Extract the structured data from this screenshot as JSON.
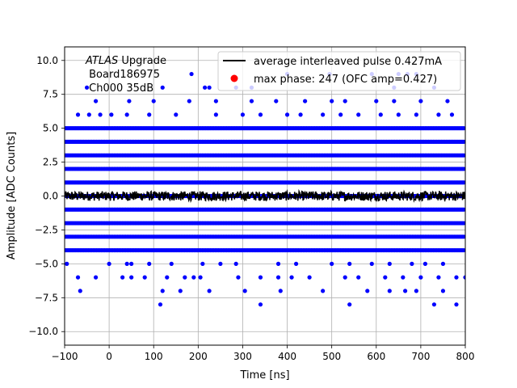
{
  "chart_data": {
    "type": "scatter",
    "title": "",
    "xlabel": "Time [ns]",
    "ylabel": "Amplitude [ADC Counts]",
    "xlim": [
      -100,
      800
    ],
    "ylim": [
      -11,
      11
    ],
    "grid": true,
    "xticks": [
      -100,
      0,
      100,
      200,
      300,
      400,
      500,
      600,
      700,
      800
    ],
    "yticks": [
      -10.0,
      -7.5,
      -5.0,
      -2.5,
      0.0,
      2.5,
      5.0,
      7.5,
      10.0
    ],
    "xtick_labels": [
      "−100",
      "0",
      "100",
      "200",
      "300",
      "400",
      "500",
      "600",
      "700",
      "800"
    ],
    "ytick_labels": [
      "−10.0",
      "−7.5",
      "−5.0",
      "−2.5",
      "0.0",
      "2.5",
      "5.0",
      "7.5",
      "10.0"
    ],
    "annotation": {
      "line1_italic": "ATLAS",
      "line1_rest": " Upgrade",
      "line2": " Board186975",
      "line3": " Ch000 35dB"
    },
    "legend": {
      "placement": "top-right",
      "entries": [
        {
          "label": "average interleaved pulse 0.427mA",
          "marker": "line",
          "color": "#000000"
        },
        {
          "label": "max phase: 247 (OFC amp=0.427)",
          "marker": "dot",
          "color": "#ff0000"
        }
      ]
    },
    "series": [
      {
        "kind": "samples",
        "color": "#0000ff",
        "dense_levels": [
          -4,
          -3,
          -2,
          -1,
          0,
          1,
          2,
          3,
          4,
          5
        ],
        "dense_spacing_ns": 3.6,
        "sparse_points": [
          [
            -70,
            6
          ],
          [
            -45,
            6
          ],
          [
            -20,
            6
          ],
          [
            5,
            6
          ],
          [
            40,
            6
          ],
          [
            90,
            6
          ],
          [
            150,
            6
          ],
          [
            240,
            6
          ],
          [
            300,
            6
          ],
          [
            340,
            6
          ],
          [
            400,
            6
          ],
          [
            430,
            6
          ],
          [
            480,
            6
          ],
          [
            520,
            6
          ],
          [
            560,
            6
          ],
          [
            610,
            6
          ],
          [
            650,
            6
          ],
          [
            690,
            6
          ],
          [
            740,
            6
          ],
          [
            770,
            6
          ],
          [
            -30,
            7
          ],
          [
            45,
            7
          ],
          [
            100,
            7
          ],
          [
            180,
            7
          ],
          [
            240,
            7
          ],
          [
            320,
            7
          ],
          [
            375,
            7
          ],
          [
            440,
            7
          ],
          [
            500,
            7
          ],
          [
            530,
            7
          ],
          [
            600,
            7
          ],
          [
            640,
            7
          ],
          [
            700,
            7
          ],
          [
            760,
            7
          ],
          [
            -50,
            8
          ],
          [
            120,
            8
          ],
          [
            215,
            8
          ],
          [
            225,
            8
          ],
          [
            285,
            8
          ],
          [
            320,
            8
          ],
          [
            640,
            8
          ],
          [
            730,
            8
          ],
          [
            185,
            9
          ],
          [
            400,
            9
          ],
          [
            495,
            9
          ],
          [
            590,
            9
          ],
          [
            650,
            9
          ],
          [
            670,
            9
          ],
          [
            690,
            9
          ],
          [
            -95,
            -5
          ],
          [
            0,
            -5
          ],
          [
            40,
            -5
          ],
          [
            50,
            -5
          ],
          [
            90,
            -5
          ],
          [
            140,
            -5
          ],
          [
            210,
            -5
          ],
          [
            250,
            -5
          ],
          [
            285,
            -5
          ],
          [
            380,
            -5
          ],
          [
            420,
            -5
          ],
          [
            500,
            -5
          ],
          [
            540,
            -5
          ],
          [
            590,
            -5
          ],
          [
            630,
            -5
          ],
          [
            680,
            -5
          ],
          [
            710,
            -5
          ],
          [
            750,
            -5
          ],
          [
            -70,
            -6
          ],
          [
            -30,
            -6
          ],
          [
            30,
            -6
          ],
          [
            50,
            -6
          ],
          [
            80,
            -6
          ],
          [
            130,
            -6
          ],
          [
            170,
            -6
          ],
          [
            190,
            -6
          ],
          [
            205,
            -6
          ],
          [
            290,
            -6
          ],
          [
            340,
            -6
          ],
          [
            380,
            -6
          ],
          [
            410,
            -6
          ],
          [
            450,
            -6
          ],
          [
            530,
            -6
          ],
          [
            560,
            -6
          ],
          [
            620,
            -6
          ],
          [
            660,
            -6
          ],
          [
            700,
            -6
          ],
          [
            740,
            -6
          ],
          [
            780,
            -6
          ],
          [
            800,
            -6
          ],
          [
            -65,
            -7
          ],
          [
            120,
            -7
          ],
          [
            160,
            -7
          ],
          [
            225,
            -7
          ],
          [
            305,
            -7
          ],
          [
            385,
            -7
          ],
          [
            480,
            -7
          ],
          [
            580,
            -7
          ],
          [
            630,
            -7
          ],
          [
            665,
            -7
          ],
          [
            690,
            -7
          ],
          [
            750,
            -7
          ],
          [
            115,
            -8
          ],
          [
            340,
            -8
          ],
          [
            540,
            -8
          ],
          [
            730,
            -8
          ],
          [
            780,
            -8
          ]
        ]
      },
      {
        "kind": "pulse",
        "name": "average interleaved pulse 0.427mA",
        "color": "#000000",
        "baseline": 0.0,
        "noise_amplitude": 0.35
      }
    ]
  }
}
